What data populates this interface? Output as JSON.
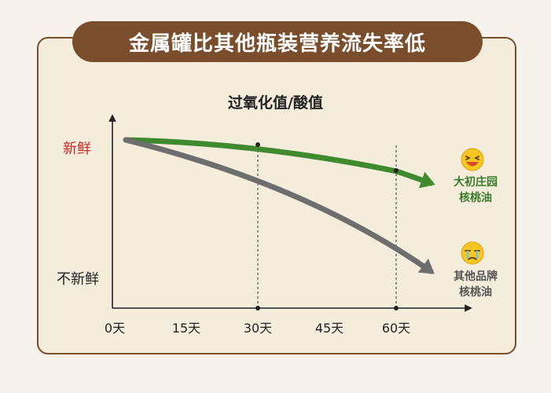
{
  "banner": {
    "title": "金属罐比其他瓶装营养流失率低"
  },
  "chart_data": {
    "type": "line",
    "title": "过氧化值/酸值",
    "xlabel": "",
    "ylabel": "",
    "y_top_label": "新鲜",
    "y_bottom_label": "不新鲜",
    "x": [
      0,
      15,
      30,
      45,
      60
    ],
    "x_tick_labels": [
      "0天",
      "15天",
      "30天",
      "45天",
      "60天"
    ],
    "markers": [
      30,
      60
    ],
    "series": [
      {
        "name": "大初庄园\n核桃油",
        "name_lines": [
          "大初庄园",
          "核桃油"
        ],
        "color": "#3f8a2e",
        "icon": "laughing-emoji-icon",
        "values": [
          1.0,
          0.97,
          0.94,
          0.88,
          0.79
        ]
      },
      {
        "name": "其他品牌\n核桃油",
        "name_lines": [
          "其他品牌",
          "核桃油"
        ],
        "color": "#6e6e6e",
        "icon": "sad-emoji-icon",
        "values": [
          1.0,
          0.85,
          0.66,
          0.42,
          0.14
        ]
      }
    ]
  }
}
